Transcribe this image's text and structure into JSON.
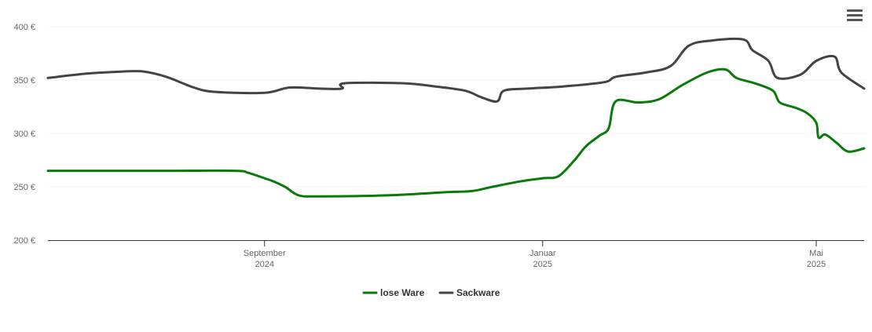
{
  "chart_data": {
    "type": "line",
    "yticks": [
      "200 €",
      "250 €",
      "300 €",
      "350 €",
      "400 €"
    ],
    "ytick_values": [
      200,
      250,
      300,
      350,
      400
    ],
    "ylim": [
      200,
      400
    ],
    "xlim": [
      "2024-05-29",
      "2025-05-22"
    ],
    "xticks": [
      {
        "date": "2024-09-01",
        "line1": "September",
        "line2": "2024"
      },
      {
        "date": "2025-01-01",
        "line1": "Januar",
        "line2": "2025"
      },
      {
        "date": "2025-05-01",
        "line1": "Mai",
        "line2": "2025"
      }
    ],
    "series": [
      {
        "name": "lose Ware",
        "color": "#0a7a0a",
        "points": [
          [
            "2024-05-29",
            265
          ],
          [
            "2024-06-20",
            265
          ],
          [
            "2024-07-20",
            265
          ],
          [
            "2024-08-19",
            265
          ],
          [
            "2024-08-25",
            263
          ],
          [
            "2024-09-01",
            258
          ],
          [
            "2024-09-05",
            255
          ],
          [
            "2024-09-10",
            250
          ],
          [
            "2024-09-16",
            242
          ],
          [
            "2024-09-25",
            241
          ],
          [
            "2024-10-25",
            242
          ],
          [
            "2024-11-20",
            245
          ],
          [
            "2024-12-01",
            246
          ],
          [
            "2024-12-10",
            250
          ],
          [
            "2024-12-22",
            255
          ],
          [
            "2025-01-01",
            258
          ],
          [
            "2025-01-08",
            260
          ],
          [
            "2025-01-15",
            275
          ],
          [
            "2025-01-20",
            288
          ],
          [
            "2025-01-26",
            298
          ],
          [
            "2025-01-30",
            305
          ],
          [
            "2025-02-02",
            330
          ],
          [
            "2025-02-12",
            329
          ],
          [
            "2025-02-21",
            332
          ],
          [
            "2025-03-03",
            345
          ],
          [
            "2025-03-14",
            357
          ],
          [
            "2025-03-22",
            360
          ],
          [
            "2025-03-27",
            352
          ],
          [
            "2025-04-04",
            347
          ],
          [
            "2025-04-12",
            340
          ],
          [
            "2025-04-15",
            329
          ],
          [
            "2025-04-22",
            324
          ],
          [
            "2025-04-27",
            319
          ],
          [
            "2025-05-01",
            310
          ],
          [
            "2025-05-02",
            296
          ],
          [
            "2025-05-05",
            299
          ],
          [
            "2025-05-10",
            291
          ],
          [
            "2025-05-15",
            283
          ],
          [
            "2025-05-22",
            286
          ]
        ]
      },
      {
        "name": "Sackware",
        "color": "#434348",
        "points": [
          [
            "2024-05-29",
            352
          ],
          [
            "2024-06-15",
            356
          ],
          [
            "2024-07-01",
            358
          ],
          [
            "2024-07-10",
            358
          ],
          [
            "2024-07-20",
            353
          ],
          [
            "2024-08-01",
            343
          ],
          [
            "2024-08-10",
            339
          ],
          [
            "2024-09-01",
            338
          ],
          [
            "2024-09-12",
            343
          ],
          [
            "2024-09-25",
            342
          ],
          [
            "2024-10-05",
            342
          ],
          [
            "2024-10-06",
            347
          ],
          [
            "2024-11-01",
            347
          ],
          [
            "2024-11-15",
            344
          ],
          [
            "2024-11-28",
            340
          ],
          [
            "2024-12-05",
            334
          ],
          [
            "2024-12-12",
            330
          ],
          [
            "2024-12-15",
            340
          ],
          [
            "2024-12-25",
            342
          ],
          [
            "2025-01-10",
            344
          ],
          [
            "2025-01-28",
            348
          ],
          [
            "2025-02-02",
            353
          ],
          [
            "2025-02-15",
            357
          ],
          [
            "2025-02-26",
            363
          ],
          [
            "2025-03-06",
            382
          ],
          [
            "2025-03-16",
            387
          ],
          [
            "2025-03-30",
            388
          ],
          [
            "2025-04-03",
            378
          ],
          [
            "2025-04-10",
            368
          ],
          [
            "2025-04-14",
            352
          ],
          [
            "2025-04-24",
            355
          ],
          [
            "2025-05-01",
            368
          ],
          [
            "2025-05-09",
            372
          ],
          [
            "2025-05-12",
            357
          ],
          [
            "2025-05-22",
            342
          ]
        ]
      }
    ],
    "legend": {
      "position": "bottom-center"
    }
  }
}
